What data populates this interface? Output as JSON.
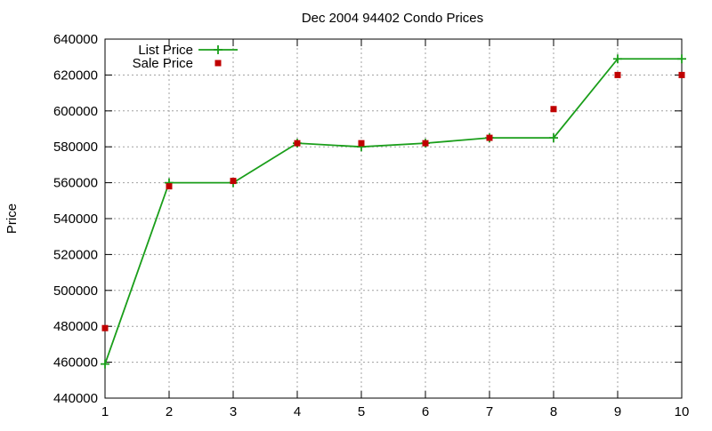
{
  "chart_data": {
    "type": "line",
    "title": "Dec 2004 94402 Condo Prices",
    "xlabel": "",
    "ylabel": "Price",
    "xlim": [
      1,
      10
    ],
    "ylim": [
      440000,
      640000
    ],
    "x_ticks": [
      "1",
      "2",
      "3",
      "4",
      "5",
      "6",
      "7",
      "8",
      "9",
      "10"
    ],
    "y_ticks": [
      "440000",
      "460000",
      "480000",
      "500000",
      "520000",
      "540000",
      "560000",
      "580000",
      "600000",
      "620000",
      "640000"
    ],
    "grid": true,
    "legend_position": "top-left",
    "series": [
      {
        "name": "List Price",
        "style": "line",
        "marker": "plus",
        "color": "#1a9e1a",
        "x": [
          1,
          2,
          3,
          4,
          5,
          6,
          7,
          8,
          9,
          10
        ],
        "y": [
          459000,
          560000,
          560000,
          582000,
          580000,
          582000,
          585000,
          585000,
          629000,
          629000
        ]
      },
      {
        "name": "Sale Price",
        "style": "points",
        "marker": "square",
        "color": "#c00000",
        "x": [
          1,
          2,
          3,
          4,
          5,
          6,
          7,
          8,
          9,
          10
        ],
        "y": [
          479000,
          558000,
          561000,
          582000,
          582000,
          582000,
          585000,
          601000,
          620000,
          620000
        ]
      }
    ]
  }
}
